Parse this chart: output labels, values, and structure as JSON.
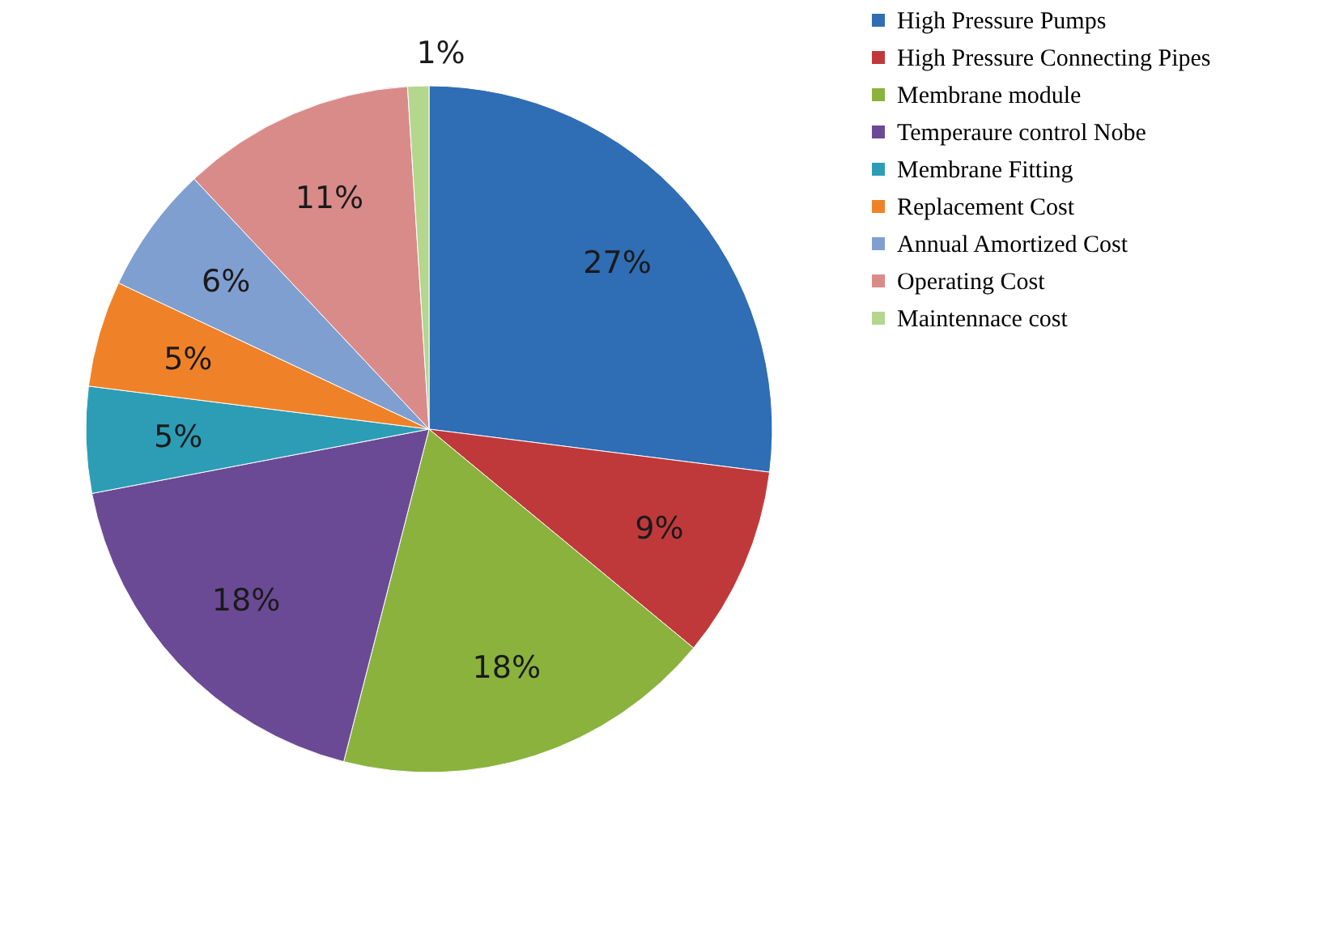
{
  "chart_data": {
    "type": "pie",
    "categories": [
      "High Pressure Pumps",
      "High Pressure Connecting Pipes",
      "Membrane module",
      "Temperaure control Nobe",
      "Membrane Fitting",
      "Replacement Cost",
      "Annual Amortized Cost",
      "Operating Cost",
      "Maintennace cost"
    ],
    "values": [
      27,
      9,
      18,
      18,
      5,
      5,
      6,
      11,
      1
    ],
    "value_labels": [
      "27%",
      "9%",
      "18%",
      "18%",
      "5%",
      "5%",
      "6%",
      "11%",
      "1%"
    ],
    "colors": [
      "#2f6db5",
      "#c0393a",
      "#8ab23d",
      "#6b4a95",
      "#2d9db6",
      "#ef8228",
      "#7f9fd0",
      "#d98b8a",
      "#b4d68d"
    ],
    "legend": "right"
  }
}
